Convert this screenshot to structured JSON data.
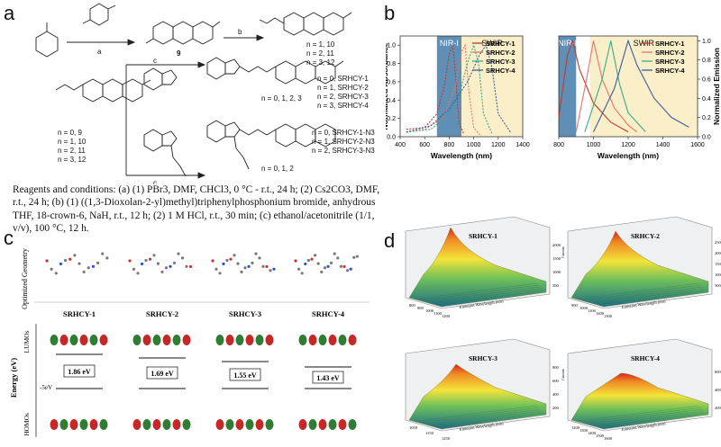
{
  "panels": {
    "a": "a",
    "b": "b",
    "c": "c",
    "d": "d"
  },
  "scheme": {
    "compound_9": "9",
    "step_a": "a",
    "step_b": "b",
    "step_c": "c",
    "n_list_top": [
      "n = 1, 10",
      "n = 2, 11",
      "n = 3, 12"
    ],
    "n_list_left": [
      "n = 0, 9",
      "n = 1, 10",
      "n = 2, 11",
      "n = 3, 12"
    ],
    "srhcy_labels": [
      "n = 0, SRHCY-1",
      "n = 1, SRHCY-2",
      "n = 2, SRHCY-3",
      "n = 3, SRHCY-4"
    ],
    "srhcy_n": "n = 0, 1, 2, 3",
    "n3_labels": [
      "n = 0, SRHCY-1-N3",
      "n = 1, SRHCY-2-N3",
      "n = 2, SRHCY-3-N3"
    ],
    "n3_n": "n = 0, 1, 2",
    "conditions": "Reagents and conditions: (a) (1) PBr3, DMF, CHCl3, 0 °C - r.t., 24 h; (2) Cs2CO3, DMF, r.t., 24 h; (b) (1) ((1,3-Dioxolan-2-yl)methyl)triphenylphosphonium bromide, anhydrous THF, 18-crown-6, NaH, r.t., 12 h; (2) 1 M HCl, r.t., 30 min; (c)  ethanol/acetonitrile (1/1, v/v), 100 °C, 12 h."
  },
  "chart_data": [
    {
      "type": "line",
      "title": "",
      "xlabel": "Wavelength (nm)",
      "ylabel": "Normalized Absorbance",
      "xlim": [
        400,
        1400
      ],
      "ylim": [
        0,
        1.1
      ],
      "xticks": [
        "400",
        "600",
        "800",
        "1000",
        "1200",
        "1400"
      ],
      "yticks": [
        "0.0",
        "0.2",
        "0.4",
        "0.6",
        "0.8",
        "1.0"
      ],
      "bands": [
        {
          "name": "NIR-I",
          "range": [
            700,
            900
          ]
        },
        {
          "name": "SWIR",
          "range": [
            900,
            1400
          ]
        }
      ],
      "series": [
        {
          "name": "SRHCY-1",
          "color": "#c0392b",
          "x": [
            450,
            600,
            700,
            760,
            800,
            830,
            850,
            880,
            920
          ],
          "y": [
            0.08,
            0.1,
            0.25,
            0.55,
            0.9,
            1.0,
            0.7,
            0.15,
            0.03
          ]
        },
        {
          "name": "SRHCY-2",
          "color": "#e7746b",
          "x": [
            450,
            600,
            750,
            850,
            900,
            930,
            960,
            1000,
            1050
          ],
          "y": [
            0.05,
            0.08,
            0.2,
            0.55,
            0.92,
            1.0,
            0.5,
            0.1,
            0.02
          ]
        },
        {
          "name": "SRHCY-3",
          "color": "#3aaa8a",
          "x": [
            450,
            650,
            800,
            900,
            960,
            1000,
            1040,
            1080,
            1150
          ],
          "y": [
            0.05,
            0.08,
            0.25,
            0.55,
            0.85,
            1.0,
            0.8,
            0.25,
            0.03
          ]
        },
        {
          "name": "SRHCY-4",
          "color": "#3a5ba0",
          "x": [
            450,
            650,
            800,
            950,
            1050,
            1100,
            1150,
            1200,
            1300
          ],
          "y": [
            0.05,
            0.12,
            0.3,
            0.6,
            0.9,
            1.0,
            0.75,
            0.25,
            0.05
          ]
        }
      ]
    },
    {
      "type": "line",
      "title": "",
      "xlabel": "Wavelength (nm)",
      "ylabel": "Normalized Emission",
      "xlim": [
        800,
        1600
      ],
      "ylim": [
        0,
        1.05
      ],
      "xticks": [
        "800",
        "1000",
        "1200",
        "1400",
        "1600"
      ],
      "yticks": [
        "0.0",
        "0.2",
        "0.4",
        "0.6",
        "0.8",
        "1.0"
      ],
      "bands": [
        {
          "name": "NIR-I",
          "range": [
            780,
            900
          ]
        },
        {
          "name": "SWIR",
          "range": [
            980,
            1600
          ]
        }
      ],
      "series": [
        {
          "name": "SRHCY-1",
          "color": "#c0392b",
          "x": [
            800,
            850,
            880,
            920,
            1000,
            1100,
            1200
          ],
          "y": [
            0.2,
            0.85,
            1.0,
            0.7,
            0.35,
            0.15,
            0.05
          ]
        },
        {
          "name": "SRHCY-2",
          "color": "#e7746b",
          "x": [
            900,
            960,
            1000,
            1050,
            1120,
            1200,
            1250
          ],
          "y": [
            0.05,
            0.6,
            1.0,
            0.6,
            0.3,
            0.12,
            0.05
          ]
        },
        {
          "name": "SRHCY-3",
          "color": "#3aaa8a",
          "x": [
            950,
            1050,
            1100,
            1150,
            1200,
            1300
          ],
          "y": [
            0.05,
            0.6,
            1.0,
            0.55,
            0.25,
            0.05
          ]
        },
        {
          "name": "SRHCY-4",
          "color": "#3a5ba0",
          "x": [
            1000,
            1120,
            1200,
            1250,
            1350,
            1450,
            1550
          ],
          "y": [
            0.05,
            0.5,
            1.0,
            0.75,
            0.4,
            0.2,
            0.1
          ]
        }
      ]
    }
  ],
  "panel_c": {
    "optimized_label": "Optimized Geometry",
    "molecules": [
      "SRHCY-1",
      "SRHCY-2",
      "SRHCY-3",
      "SRHCY-4"
    ],
    "energy_axis": "Energy (eV)",
    "lumo": "LUMOs",
    "homo": "HOMOs",
    "ref_level": "-5eV",
    "gaps": [
      "1.86 eV",
      "1.69 eV",
      "1.55 eV",
      "1.43 eV"
    ]
  },
  "panel_d": {
    "plots": [
      {
        "title": "SRHCY-1",
        "x_ticks": [
          "800",
          "900",
          "1000",
          "1100",
          "1200"
        ],
        "z_ticks": [
          "500",
          "1000",
          "1500",
          "2000"
        ],
        "x_label": "Emission Wavelength (nm)",
        "z_label": "Counts"
      },
      {
        "title": "SRHCY-2",
        "x_ticks": [
          "900",
          "1000",
          "1100",
          "1200",
          "1300"
        ],
        "z_ticks": [
          "500",
          "1000",
          "1500",
          "2000",
          "2500"
        ],
        "x_label": "Emission Wavelength (nm)",
        "z_label": "Counts"
      },
      {
        "title": "SRHCY-3",
        "x_ticks": [
          "1050",
          "1150",
          "1250"
        ],
        "z_ticks": [
          "200",
          "400",
          "600",
          "800"
        ],
        "x_label": "Emission Wavelength (nm)",
        "z_label": "Counts"
      },
      {
        "title": "SRHCY-4",
        "x_ticks": [
          "1200",
          "1300",
          "1400",
          "1500",
          "1600"
        ],
        "z_ticks": [
          "200",
          "400",
          "600"
        ],
        "x_label": "Emission Wavelength (nm)",
        "z_label": "Counts"
      }
    ]
  }
}
